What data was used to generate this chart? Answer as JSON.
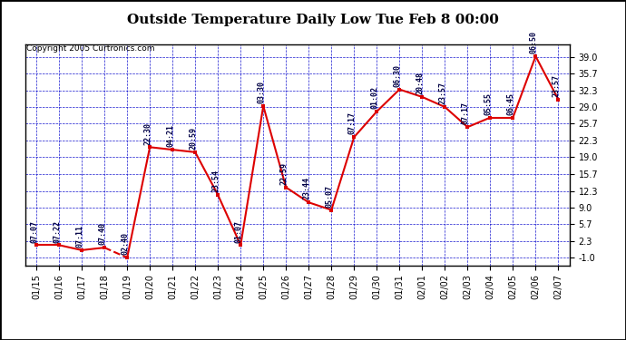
{
  "title": "Outside Temperature Daily Low Tue Feb 8 00:00",
  "copyright": "Copyright 2005 Curtronics.com",
  "x_labels": [
    "01/15",
    "01/16",
    "01/17",
    "01/18",
    "01/19",
    "01/20",
    "01/21",
    "01/22",
    "01/23",
    "01/24",
    "01/25",
    "01/26",
    "01/27",
    "01/28",
    "01/29",
    "01/30",
    "01/31",
    "02/01",
    "02/02",
    "02/03",
    "02/04",
    "02/05",
    "02/06",
    "02/07"
  ],
  "y_values": [
    1.5,
    1.5,
    0.5,
    1.0,
    -1.0,
    21.0,
    20.5,
    20.0,
    11.5,
    1.5,
    29.2,
    13.0,
    10.0,
    8.5,
    23.0,
    28.1,
    32.5,
    31.0,
    29.0,
    25.0,
    26.9,
    26.9,
    39.1,
    30.5
  ],
  "annotations": [
    "07:07",
    "07:22",
    "07:11",
    "07:40",
    "02:40",
    "22:30",
    "04:21",
    "20:59",
    "23:54",
    "01:07",
    "03:30",
    "22:59",
    "23:44",
    "05:07",
    "07:17",
    "01:02",
    "06:30",
    "20:48",
    "23:57",
    "07:17",
    "05:55",
    "06:45",
    "06:50",
    "23:57"
  ],
  "dashed_indices": [
    3,
    4
  ],
  "y_ticks": [
    -1.0,
    2.3,
    5.7,
    9.0,
    12.3,
    15.7,
    19.0,
    22.3,
    25.7,
    29.0,
    32.3,
    35.7,
    39.0
  ],
  "y_min": -2.5,
  "y_max": 41.5,
  "line_color": "#dd0000",
  "dot_color": "#dd0000",
  "outer_bg": "#ffffff",
  "plot_bg": "#ffffff",
  "grid_color": "#0000cc",
  "annot_color": "#000044",
  "title_fontsize": 11,
  "annot_fontsize": 6,
  "tick_fontsize": 7,
  "copyright_fontsize": 6.5
}
